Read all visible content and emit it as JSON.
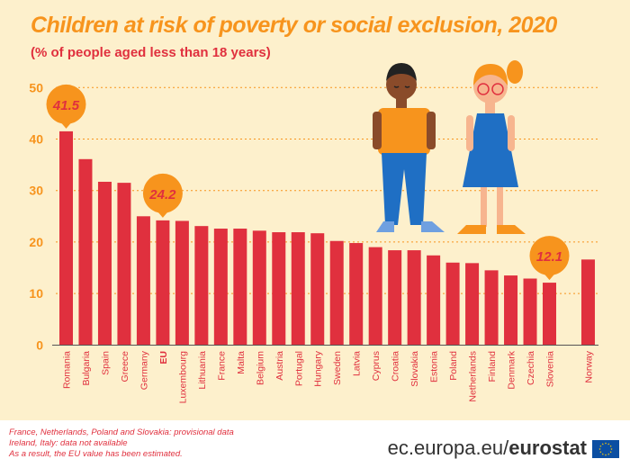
{
  "chart_data": {
    "type": "bar",
    "title": "Children at risk of poverty or social exclusion, 2020",
    "subtitle": "(% of people aged less than 18 years)",
    "categories": [
      "Romania",
      "Bulgaria",
      "Spain",
      "Greece",
      "Germany",
      "EU",
      "Luxembourg",
      "Lithuania",
      "France",
      "Malta",
      "Belgium",
      "Austria",
      "Portugal",
      "Hungary",
      "Sweden",
      "Latvia",
      "Cyprus",
      "Croatia",
      "Slovakia",
      "Estonia",
      "Poland",
      "Netherlands",
      "Finland",
      "Denmark",
      "Czechia",
      "Slovenia",
      "",
      "Norway"
    ],
    "values": [
      41.5,
      36.1,
      31.7,
      31.5,
      25.0,
      24.2,
      24.1,
      23.1,
      22.6,
      22.6,
      22.2,
      21.9,
      21.9,
      21.7,
      20.2,
      19.8,
      19.0,
      18.4,
      18.4,
      17.4,
      16.0,
      15.9,
      14.5,
      13.5,
      12.9,
      12.1,
      null,
      16.6
    ],
    "data_labels": [
      {
        "category": "Romania",
        "text": "41.5"
      },
      {
        "category": "EU",
        "text": "24.2"
      },
      {
        "category": "Slovenia",
        "text": "12.1"
      }
    ],
    "highlighted_category": "EU",
    "ylim": [
      0,
      50
    ],
    "yticks": [
      "0",
      "10",
      "20",
      "30",
      "40",
      "50"
    ],
    "grid": true,
    "colors": {
      "bar": "#e0303e",
      "callout": "#f7941d",
      "title": "#f7941d",
      "axis_text": "#f7941d",
      "background": "#fdf0cc"
    }
  },
  "footer": {
    "notes": [
      "France, Netherlands, Poland and Slovakia: provisional data",
      "Ireland, Italy: data not available",
      "As a result, the EU value has been estimated."
    ],
    "site_prefix": "ec.europa.eu/",
    "site_brand": "eurostat"
  }
}
